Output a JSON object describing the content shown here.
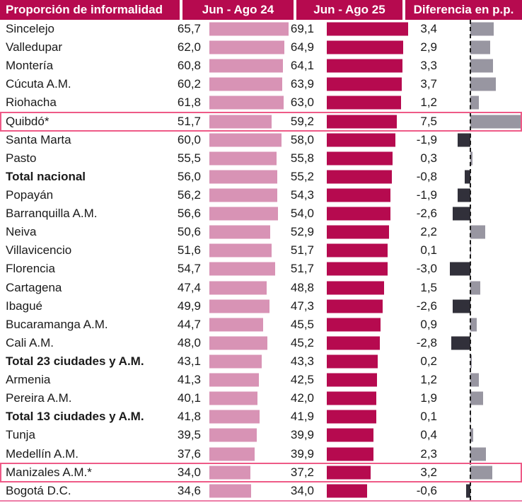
{
  "header": {
    "col1": "Proporción de informalidad",
    "col2": "Jun - Ago 24",
    "col3": "Jun - Ago 25",
    "col4": "Diferencia en p.p."
  },
  "colors": {
    "header_bg": "#b60a4f",
    "bar_24": "#d893b5",
    "bar_25": "#b60a4f",
    "diff_pos": "#9896a1",
    "diff_neg": "#31303a",
    "highlight_border": "#ee5a87",
    "bottom_line": "#ed7ca6",
    "text": "#1a1a1a"
  },
  "chart_data": {
    "type": "bar",
    "title": "Proporción de informalidad",
    "columns": [
      "Proporción de informalidad",
      "Jun - Ago 24",
      "Jun - Ago 25",
      "Diferencia en p.p."
    ],
    "decimal_separator": ",",
    "legend_position": "header",
    "baseline": "dashed vertical zero line in difference column; positive differences gray bars to the right, negative dark bars to the left",
    "highlighted_rows": [
      "Quibdó*",
      "Manizales A.M.*"
    ],
    "rows": [
      {
        "label": "Sincelejo",
        "v24": 65.7,
        "v25": 69.1,
        "diff": 3.4
      },
      {
        "label": "Valledupar",
        "v24": 62.0,
        "v25": 64.9,
        "diff": 2.9
      },
      {
        "label": "Montería",
        "v24": 60.8,
        "v25": 64.1,
        "diff": 3.3
      },
      {
        "label": "Cúcuta A.M.",
        "v24": 60.2,
        "v25": 63.9,
        "diff": 3.7
      },
      {
        "label": "Riohacha",
        "v24": 61.8,
        "v25": 63.0,
        "diff": 1.2
      },
      {
        "label": "Quibdó*",
        "v24": 51.7,
        "v25": 59.2,
        "diff": 7.5,
        "highlight": true
      },
      {
        "label": "Santa Marta",
        "v24": 60.0,
        "v25": 58.0,
        "diff": -1.9
      },
      {
        "label": "Pasto",
        "v24": 55.5,
        "v25": 55.8,
        "diff": 0.3
      },
      {
        "label": "Total nacional",
        "v24": 56.0,
        "v25": 55.2,
        "diff": -0.8,
        "bold": true
      },
      {
        "label": "Popayán",
        "v24": 56.2,
        "v25": 54.3,
        "diff": -1.9
      },
      {
        "label": "Barranquilla A.M.",
        "v24": 56.6,
        "v25": 54.0,
        "diff": -2.6
      },
      {
        "label": "Neiva",
        "v24": 50.6,
        "v25": 52.9,
        "diff": 2.2
      },
      {
        "label": "Villavicencio",
        "v24": 51.6,
        "v25": 51.7,
        "diff": 0.1
      },
      {
        "label": "Florencia",
        "v24": 54.7,
        "v25": 51.7,
        "diff": -3.0
      },
      {
        "label": "Cartagena",
        "v24": 47.4,
        "v25": 48.8,
        "diff": 1.5
      },
      {
        "label": "Ibagué",
        "v24": 49.9,
        "v25": 47.3,
        "diff": -2.6
      },
      {
        "label": "Bucaramanga A.M.",
        "v24": 44.7,
        "v25": 45.5,
        "diff": 0.9
      },
      {
        "label": "Cali A.M.",
        "v24": 48.0,
        "v25": 45.2,
        "diff": -2.8
      },
      {
        "label": "Total 23 ciudades y A.M.",
        "v24": 43.1,
        "v25": 43.3,
        "diff": 0.2,
        "bold": true
      },
      {
        "label": "Armenia",
        "v24": 41.3,
        "v25": 42.5,
        "diff": 1.2
      },
      {
        "label": "Pereira A.M.",
        "v24": 40.1,
        "v25": 42.0,
        "diff": 1.9
      },
      {
        "label": "Total 13 ciudades y A.M.",
        "v24": 41.8,
        "v25": 41.9,
        "diff": 0.1,
        "bold": true
      },
      {
        "label": "Tunja",
        "v24": 39.5,
        "v25": 39.9,
        "diff": 0.4
      },
      {
        "label": "Medellín A.M.",
        "v24": 37.6,
        "v25": 39.9,
        "diff": 2.3
      },
      {
        "label": "Manizales A.M.*",
        "v24": 34.0,
        "v25": 37.2,
        "diff": 3.2,
        "highlight": true
      },
      {
        "label": "Bogotá D.C.",
        "v24": 34.6,
        "v25": 34.0,
        "diff": -0.6
      }
    ]
  }
}
